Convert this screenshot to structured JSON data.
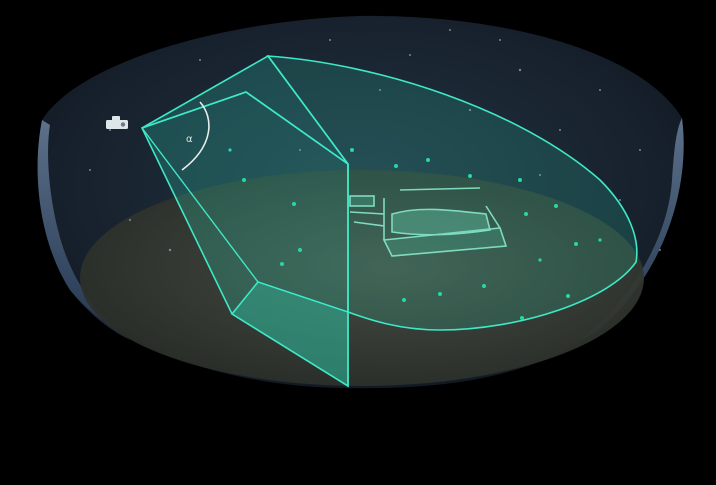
{
  "scene": {
    "background": "#000000",
    "dome_fill": "#1b2634",
    "dome_rim": "#8fb4e6",
    "ground_fill": "#3a4036",
    "frustum_color": "#2fd6b4",
    "frustum_edge": "#3ee8c6",
    "star_color": "#9fb0bd",
    "point_color": "#27d8a2"
  },
  "camera": {
    "icon": "camera-icon"
  },
  "fov": {
    "label": "α",
    "arc_color": "#e8ecea"
  },
  "object": {
    "name": "scanned-structure"
  }
}
